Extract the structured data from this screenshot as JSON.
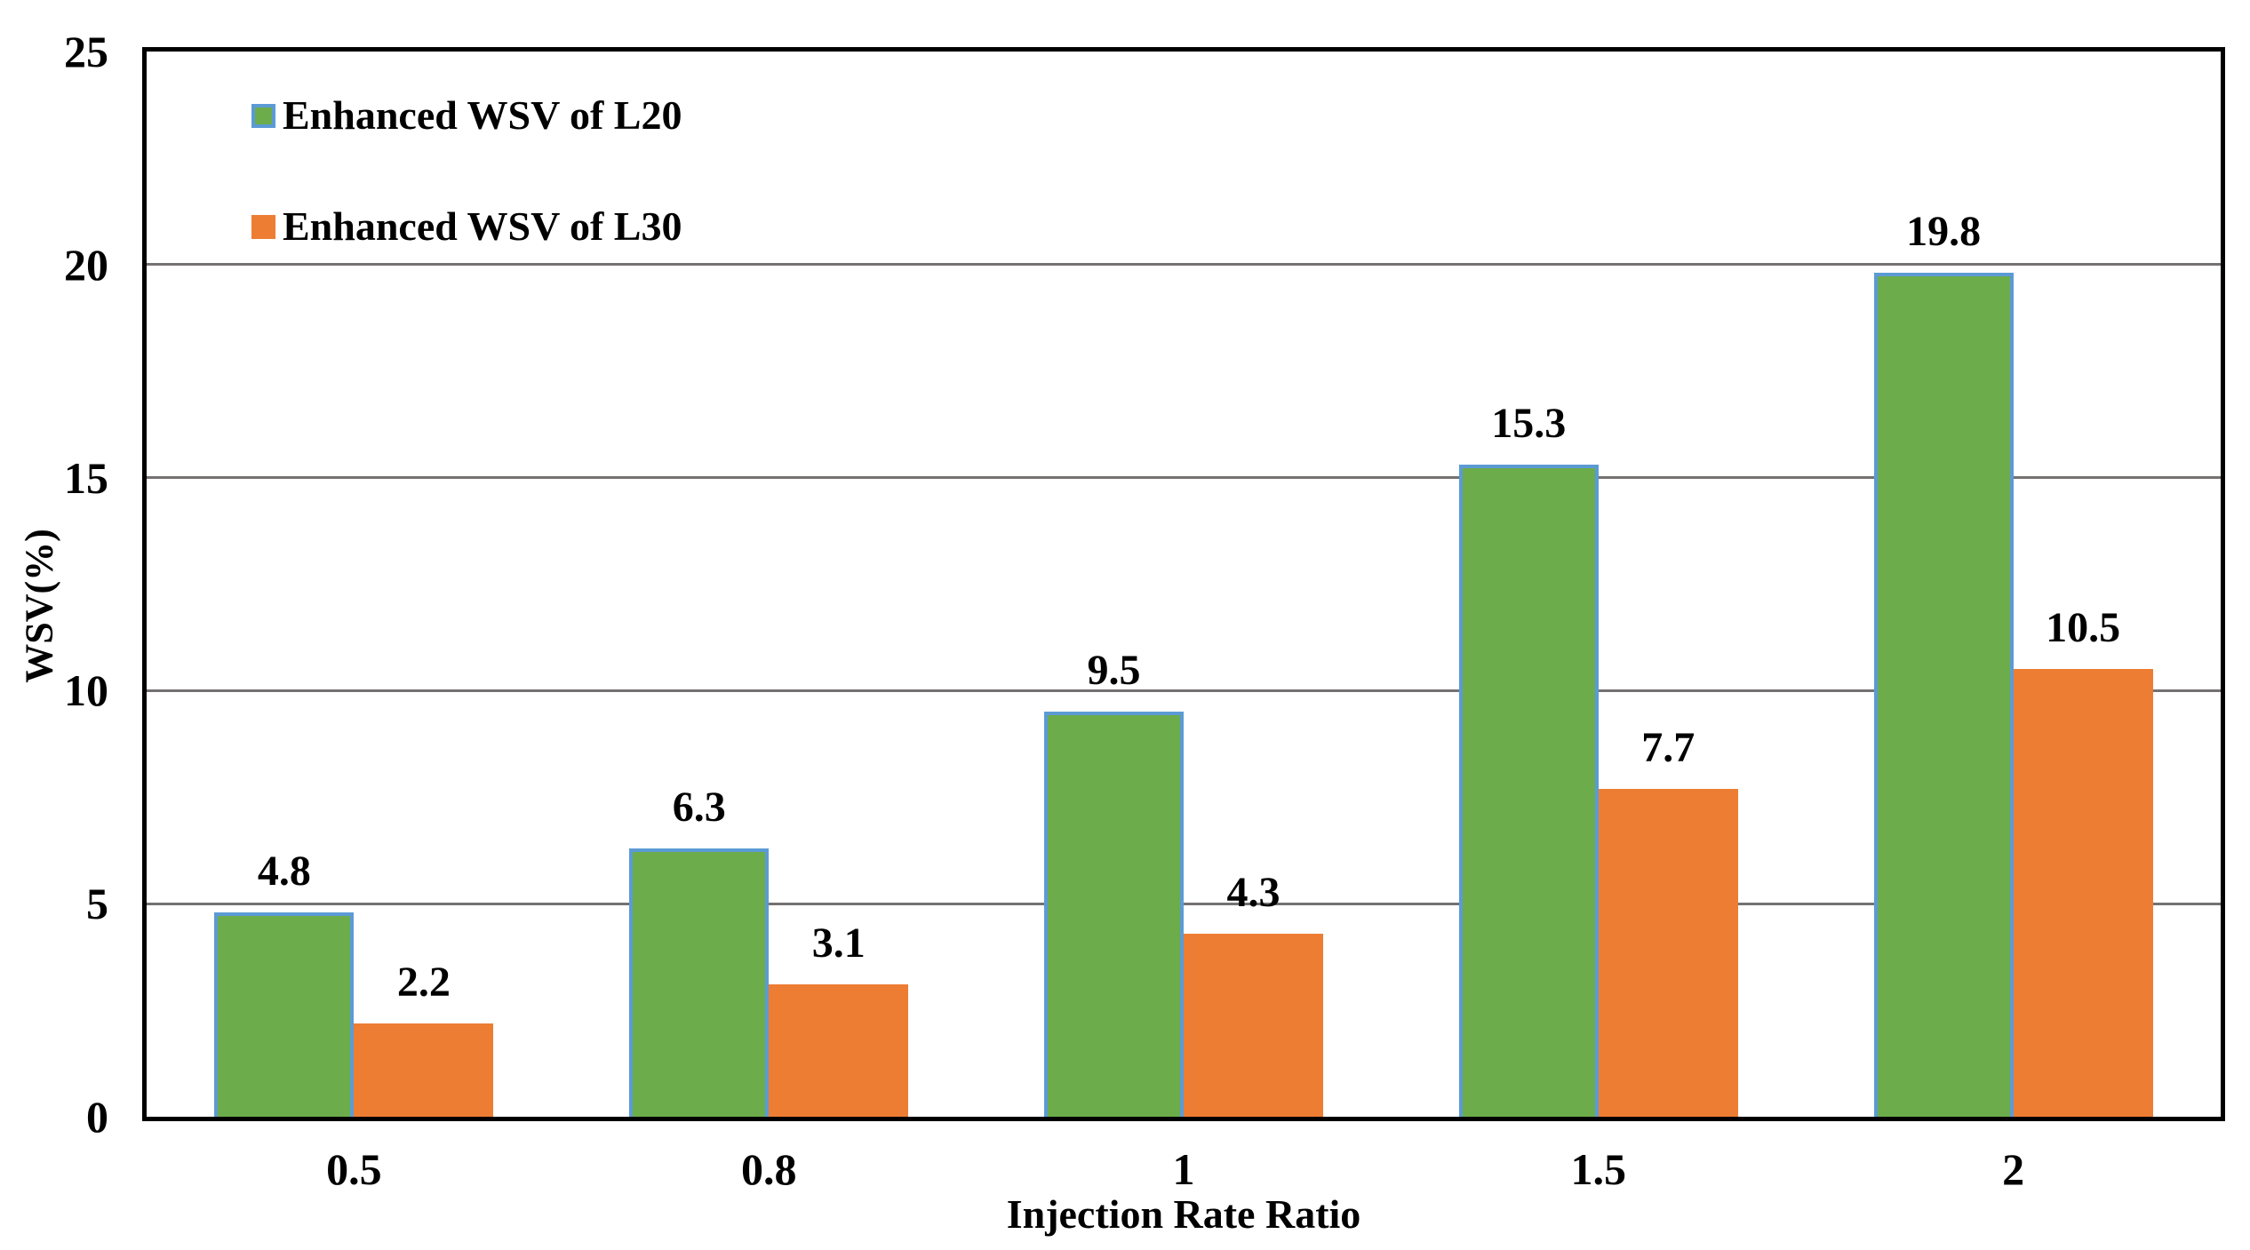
{
  "chart_data": {
    "type": "bar",
    "title": "",
    "xlabel": "Injection Rate Ratio",
    "ylabel": "WSV(%)",
    "categories": [
      "0.5",
      "0.8",
      "1",
      "1.5",
      "2"
    ],
    "series": [
      {
        "name": "Enhanced WSV of L20",
        "values": [
          4.8,
          6.3,
          9.5,
          15.3,
          19.8
        ],
        "fill": "#6CAC4B",
        "border": "#5B9BD5"
      },
      {
        "name": "Enhanced WSV of L30",
        "values": [
          2.2,
          3.1,
          4.3,
          7.7,
          10.5
        ],
        "fill": "#ED7D33",
        "border": null
      }
    ],
    "value_labels": [
      "4.8",
      "6.3",
      "9.5",
      "15.3",
      "19.8",
      "2.2",
      "3.1",
      "4.3",
      "7.7",
      "10.5"
    ],
    "ylim": [
      0,
      25
    ],
    "yticks": [
      0,
      5,
      10,
      15,
      20,
      25
    ],
    "grid": true,
    "legend_position": "top-left-inside",
    "colors": {
      "gridline": "#757171",
      "axis_border": "#000000",
      "text": "#000000",
      "background": "#ffffff"
    }
  }
}
